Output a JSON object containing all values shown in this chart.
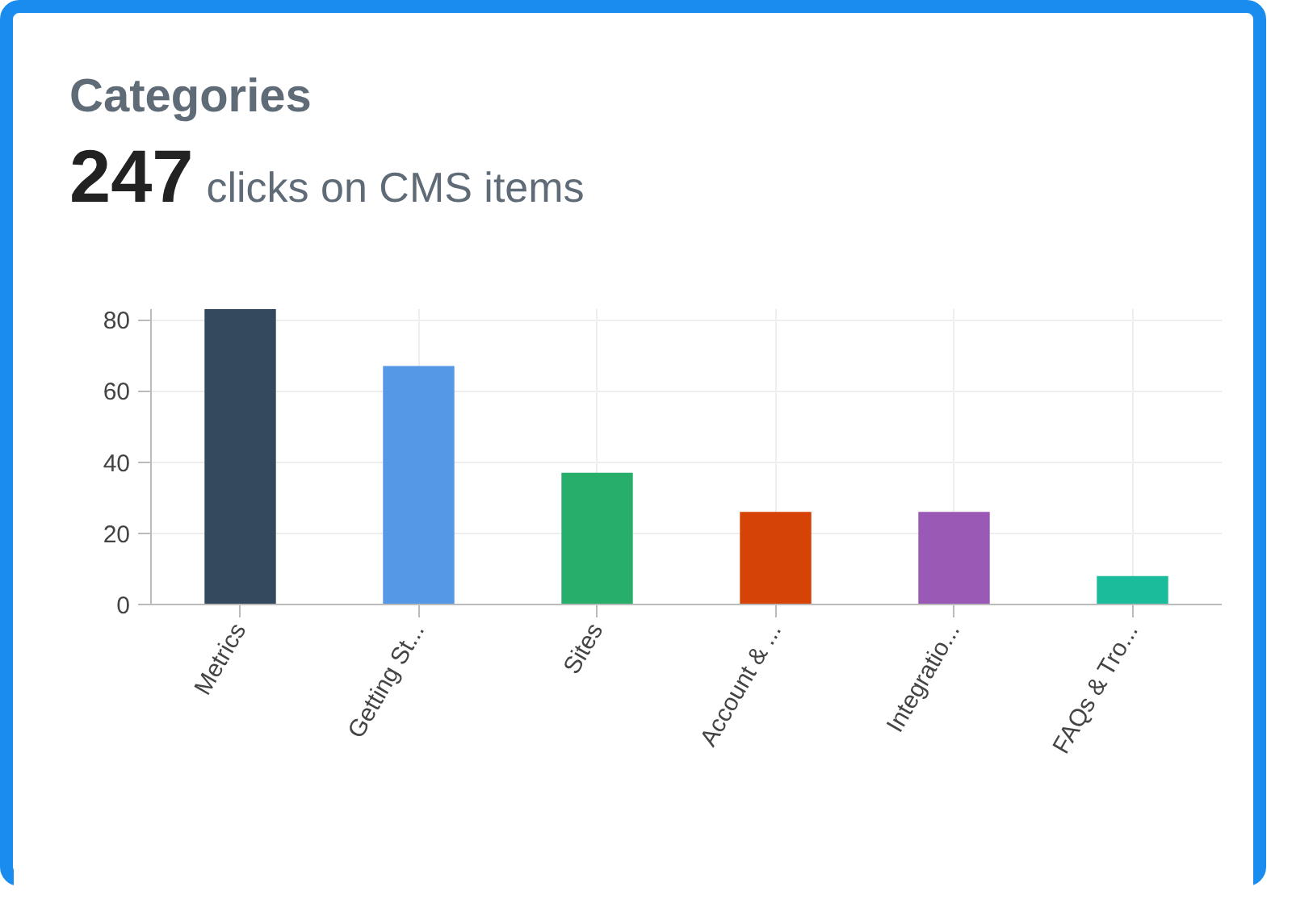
{
  "chart_data": {
    "type": "bar",
    "title": "Categories",
    "subtitle": "clicks on CMS items",
    "annotations": [
      "247"
    ],
    "categories": [
      "Metrics",
      "Getting St...",
      "Sites",
      "Account & ...",
      "Integratio...",
      "FAQs & Tro..."
    ],
    "values": [
      83,
      67,
      37,
      26,
      26,
      8
    ],
    "colors": [
      "#34495e",
      "#5598e5",
      "#27ae6a",
      "#d64306",
      "#9b59b6",
      "#1abc9c"
    ],
    "ylim": [
      0,
      83
    ],
    "yticks": [
      0,
      20,
      40,
      60,
      80
    ],
    "grid": true
  }
}
